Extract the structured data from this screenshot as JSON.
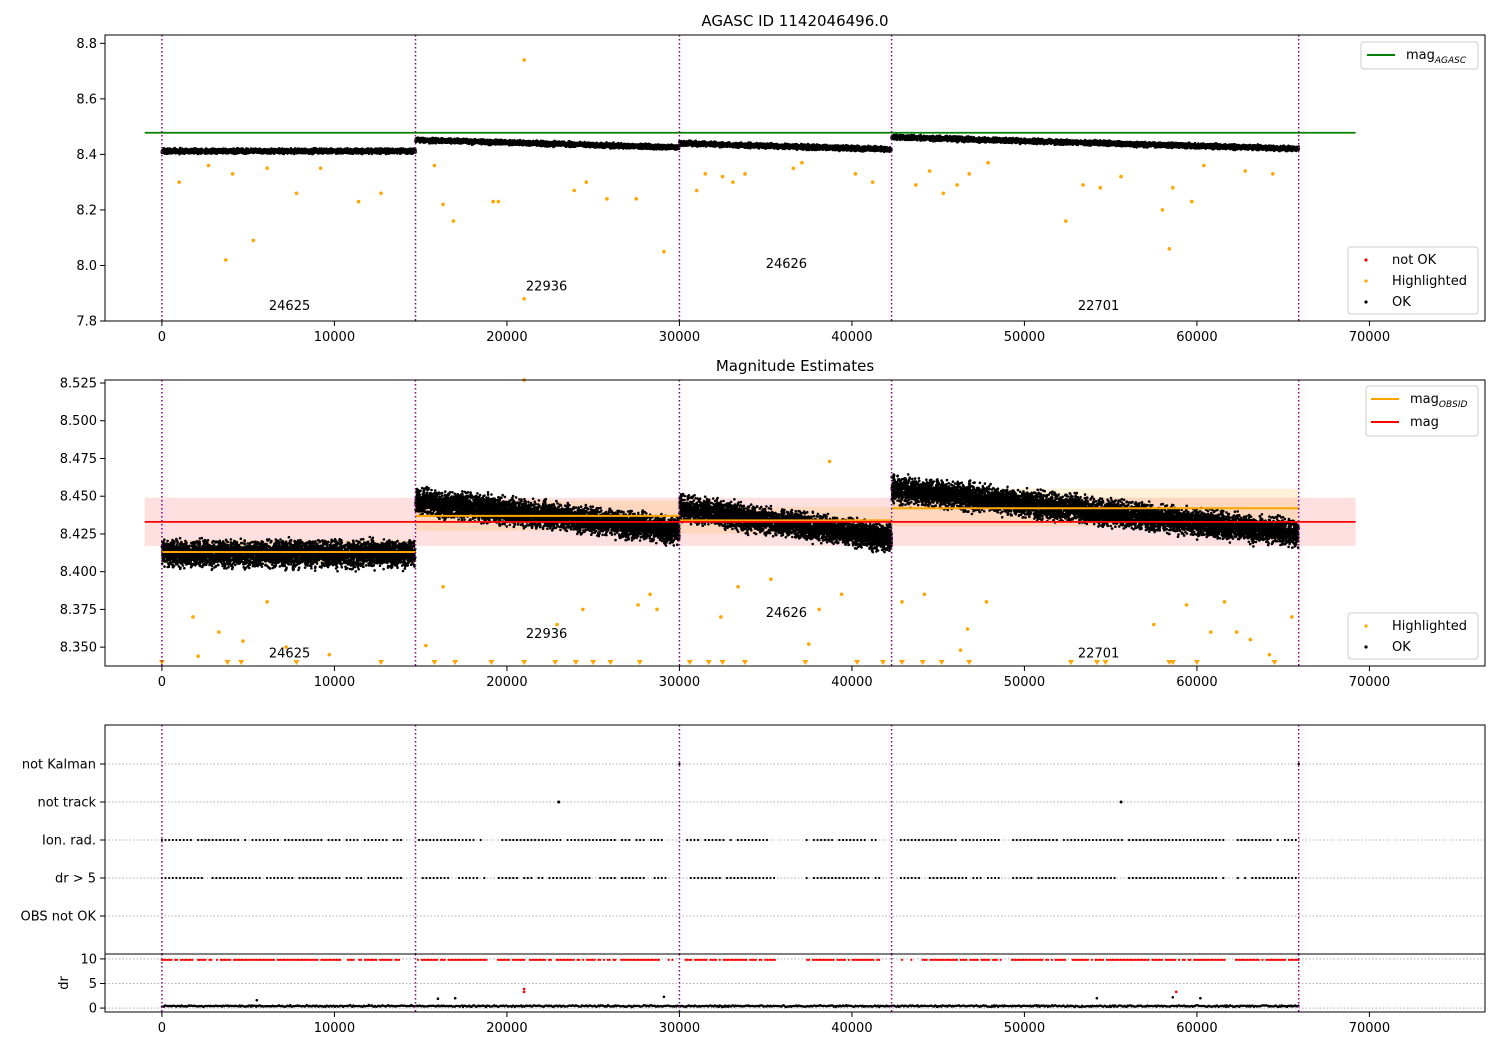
{
  "chart_data": [
    {
      "type": "scatter",
      "title": "AGASC ID 1142046496.0",
      "xlim": [
        -3300,
        76700
      ],
      "ylim": [
        7.8,
        8.83
      ],
      "xticks": [
        "0",
        "10000",
        "20000",
        "30000",
        "40000",
        "50000",
        "60000",
        "70000"
      ],
      "yticks": [
        "7.8",
        "8.0",
        "8.2",
        "8.4",
        "8.6",
        "8.8"
      ],
      "obsid_boundaries": [
        0,
        14700,
        30000,
        42300,
        65900
      ],
      "obsids": [
        {
          "label": "24625",
          "x": 7400,
          "y": 7.84
        },
        {
          "label": "22936",
          "x": 22300,
          "y": 7.91
        },
        {
          "label": "24626",
          "x": 36200,
          "y": 7.99
        },
        {
          "label": "22701",
          "x": 54300,
          "y": 7.84
        }
      ],
      "mag_agasc": 8.478,
      "ok_segments": [
        {
          "x0": 0,
          "x1": 14700,
          "y0": 8.412,
          "y1": 8.412,
          "spread": 0.012
        },
        {
          "x0": 14700,
          "x1": 30000,
          "y0": 8.452,
          "y1": 8.425,
          "spread": 0.012
        },
        {
          "x0": 30000,
          "x1": 42300,
          "y0": 8.44,
          "y1": 8.418,
          "spread": 0.012
        },
        {
          "x0": 42300,
          "x1": 65900,
          "y0": 8.462,
          "y1": 8.42,
          "spread": 0.012
        }
      ],
      "highlighted": [
        [
          3700,
          8.02
        ],
        [
          5300,
          8.09
        ],
        [
          7800,
          8.26
        ],
        [
          11400,
          8.23
        ],
        [
          12700,
          8.26
        ],
        [
          1000,
          8.3
        ],
        [
          2700,
          8.36
        ],
        [
          4100,
          8.33
        ],
        [
          6100,
          8.35
        ],
        [
          9200,
          8.35
        ],
        [
          15800,
          8.36
        ],
        [
          16300,
          8.22
        ],
        [
          16900,
          8.16
        ],
        [
          19200,
          8.23
        ],
        [
          19500,
          8.23
        ],
        [
          21000,
          7.88
        ],
        [
          21000,
          8.74
        ],
        [
          23900,
          8.27
        ],
        [
          24600,
          8.3
        ],
        [
          25800,
          8.24
        ],
        [
          27500,
          8.24
        ],
        [
          29100,
          8.05
        ],
        [
          31000,
          8.27
        ],
        [
          31500,
          8.33
        ],
        [
          32500,
          8.32
        ],
        [
          33100,
          8.3
        ],
        [
          33800,
          8.33
        ],
        [
          36600,
          8.35
        ],
        [
          37100,
          8.37
        ],
        [
          40200,
          8.33
        ],
        [
          41200,
          8.3
        ],
        [
          43700,
          8.29
        ],
        [
          44500,
          8.34
        ],
        [
          45300,
          8.26
        ],
        [
          46100,
          8.29
        ],
        [
          46800,
          8.33
        ],
        [
          47900,
          8.37
        ],
        [
          52400,
          8.16
        ],
        [
          53400,
          8.29
        ],
        [
          54400,
          8.28
        ],
        [
          55600,
          8.32
        ],
        [
          58000,
          8.2
        ],
        [
          58400,
          8.06
        ],
        [
          59700,
          8.23
        ],
        [
          60400,
          8.36
        ],
        [
          58600,
          8.28
        ],
        [
          62800,
          8.34
        ],
        [
          64400,
          8.33
        ]
      ],
      "legend": [
        {
          "label": "mag",
          "sub": "AGASC",
          "color": "#008000"
        },
        {
          "label": "not OK",
          "color": "#ff0000"
        },
        {
          "label": "Highlighted",
          "color": "#ffa500"
        },
        {
          "label": "OK",
          "color": "#000000"
        }
      ]
    },
    {
      "type": "scatter",
      "title": "Magnitude Estimates",
      "xlim": [
        -3300,
        76700
      ],
      "ylim": [
        8.3375,
        8.527
      ],
      "xticks": [
        "0",
        "10000",
        "20000",
        "30000",
        "40000",
        "50000",
        "60000",
        "70000"
      ],
      "yticks": [
        "8.350",
        "8.375",
        "8.400",
        "8.425",
        "8.450",
        "8.475",
        "8.500",
        "8.525"
      ],
      "obsid_boundaries": [
        0,
        14700,
        30000,
        42300,
        65900
      ],
      "obsids": [
        {
          "label": "24625",
          "x": 7400,
          "y": 8.343
        },
        {
          "label": "22936",
          "x": 22300,
          "y": 8.356
        },
        {
          "label": "24626",
          "x": 36200,
          "y": 8.37
        },
        {
          "label": "22701",
          "x": 54300,
          "y": 8.343
        }
      ],
      "mag": 8.433,
      "mag_band": [
        8.417,
        8.449
      ],
      "mag_obsid": [
        {
          "x0": 0,
          "x1": 14700,
          "y": 8.413,
          "band": [
            8.405,
            8.421
          ]
        },
        {
          "x0": 14700,
          "x1": 30000,
          "y": 8.437,
          "band": [
            8.427,
            8.447
          ]
        },
        {
          "x0": 30000,
          "x1": 42300,
          "y": 8.434,
          "band": [
            8.425,
            8.443
          ]
        },
        {
          "x0": 42300,
          "x1": 65900,
          "y": 8.442,
          "band": [
            8.43,
            8.455
          ]
        }
      ],
      "ok_segments": [
        {
          "x0": 0,
          "x1": 14700,
          "y0": 8.412,
          "y1": 8.412,
          "spread": 0.012
        },
        {
          "x0": 14700,
          "x1": 30000,
          "y0": 8.447,
          "y1": 8.427,
          "spread": 0.012
        },
        {
          "x0": 30000,
          "x1": 42300,
          "y0": 8.442,
          "y1": 8.422,
          "spread": 0.012
        },
        {
          "x0": 42300,
          "x1": 65900,
          "y0": 8.455,
          "y1": 8.425,
          "spread": 0.012
        }
      ],
      "highlighted": [
        [
          2100,
          8.344
        ],
        [
          3300,
          8.36
        ],
        [
          4700,
          8.354
        ],
        [
          7200,
          8.35
        ],
        [
          9700,
          8.345
        ],
        [
          1800,
          8.37
        ],
        [
          6100,
          8.38
        ],
        [
          15300,
          8.351
        ],
        [
          16300,
          8.39
        ],
        [
          21000,
          8.527
        ],
        [
          22900,
          8.365
        ],
        [
          24400,
          8.375
        ],
        [
          27600,
          8.378
        ],
        [
          28300,
          8.385
        ],
        [
          28700,
          8.375
        ],
        [
          32400,
          8.37
        ],
        [
          33400,
          8.39
        ],
        [
          35300,
          8.395
        ],
        [
          37500,
          8.352
        ],
        [
          38100,
          8.375
        ],
        [
          38700,
          8.473
        ],
        [
          39400,
          8.385
        ],
        [
          42900,
          8.38
        ],
        [
          44200,
          8.385
        ],
        [
          46300,
          8.348
        ],
        [
          46700,
          8.362
        ],
        [
          47800,
          8.38
        ],
        [
          57500,
          8.365
        ],
        [
          59400,
          8.378
        ],
        [
          60800,
          8.36
        ],
        [
          61600,
          8.38
        ],
        [
          62300,
          8.36
        ],
        [
          63100,
          8.355
        ],
        [
          64200,
          8.345
        ],
        [
          65500,
          8.37
        ]
      ],
      "lower_limits": [
        0,
        3800,
        4600,
        7800,
        12700,
        15800,
        17000,
        19100,
        21000,
        22800,
        24000,
        25000,
        26000,
        27700,
        30600,
        31700,
        32500,
        33800,
        37300,
        40300,
        41800,
        42900,
        44100,
        45200,
        46800,
        52700,
        54200,
        54700,
        58400,
        58600,
        60000,
        64500
      ],
      "legend": [
        {
          "label": "mag",
          "sub": "OBSID",
          "color": "#ffa500"
        },
        {
          "label": "mag",
          "color": "#ff0000"
        },
        {
          "label": "Highlighted",
          "color": "#ffa500"
        },
        {
          "label": "OK",
          "color": "#000000"
        }
      ]
    },
    {
      "type": "scatter",
      "title": "",
      "xlim": [
        -3300,
        76700
      ],
      "xticks": [
        "0",
        "10000",
        "20000",
        "30000",
        "40000",
        "50000",
        "60000",
        "70000"
      ],
      "flags": [
        "not Kalman",
        "not track",
        "Ion. rad.",
        "dr > 5",
        "OBS not OK"
      ],
      "obsid_boundaries": [
        0,
        14700,
        30000,
        42300,
        65900
      ],
      "not_kalman_points": [
        30000,
        65900
      ],
      "not_track_points": [
        23000,
        55600
      ],
      "flag_gaps": [
        [
          13900,
          14800
        ],
        [
          29600,
          30300
        ],
        [
          35600,
          37300
        ],
        [
          41700,
          42800
        ],
        [
          10400,
          10700
        ],
        [
          18900,
          19400
        ],
        [
          26300,
          26600
        ],
        [
          48700,
          49200
        ],
        [
          61700,
          62200
        ]
      ],
      "dr": {
        "ylabel": "dr",
        "yticks": [
          "0",
          "5",
          "10"
        ],
        "ylim": [
          -0.8,
          11
        ],
        "base_level": 0.4,
        "cap_level": 9.8,
        "outliers": [
          [
            5500,
            1.6
          ],
          [
            16000,
            1.9
          ],
          [
            17000,
            2.0
          ],
          [
            21000,
            3.3
          ],
          [
            21000,
            3.9
          ],
          [
            29100,
            2.3
          ],
          [
            54200,
            2.0
          ],
          [
            58600,
            2.2
          ],
          [
            58800,
            3.3
          ],
          [
            60200,
            2.0
          ]
        ]
      }
    }
  ]
}
